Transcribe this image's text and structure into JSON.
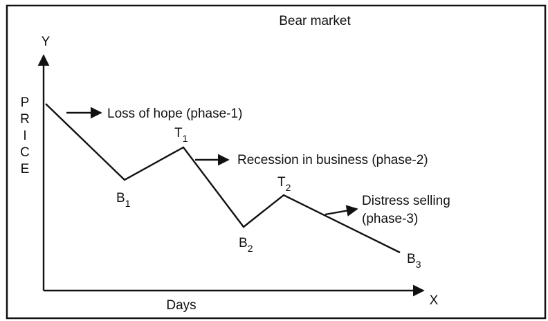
{
  "title": "Bear market",
  "axes": {
    "y": "Y",
    "x": "X",
    "y_label": "PRICE",
    "x_label": "Days"
  },
  "points": [
    {
      "label": "B",
      "sub": "1"
    },
    {
      "label": "T",
      "sub": "1"
    },
    {
      "label": "B",
      "sub": "2"
    },
    {
      "label": "T",
      "sub": "2"
    },
    {
      "label": "B",
      "sub": "3"
    }
  ],
  "annotations": [
    "Loss of hope (phase-1)",
    "Recession in business (phase-2)",
    "Distress selling",
    "(phase-3)"
  ]
}
